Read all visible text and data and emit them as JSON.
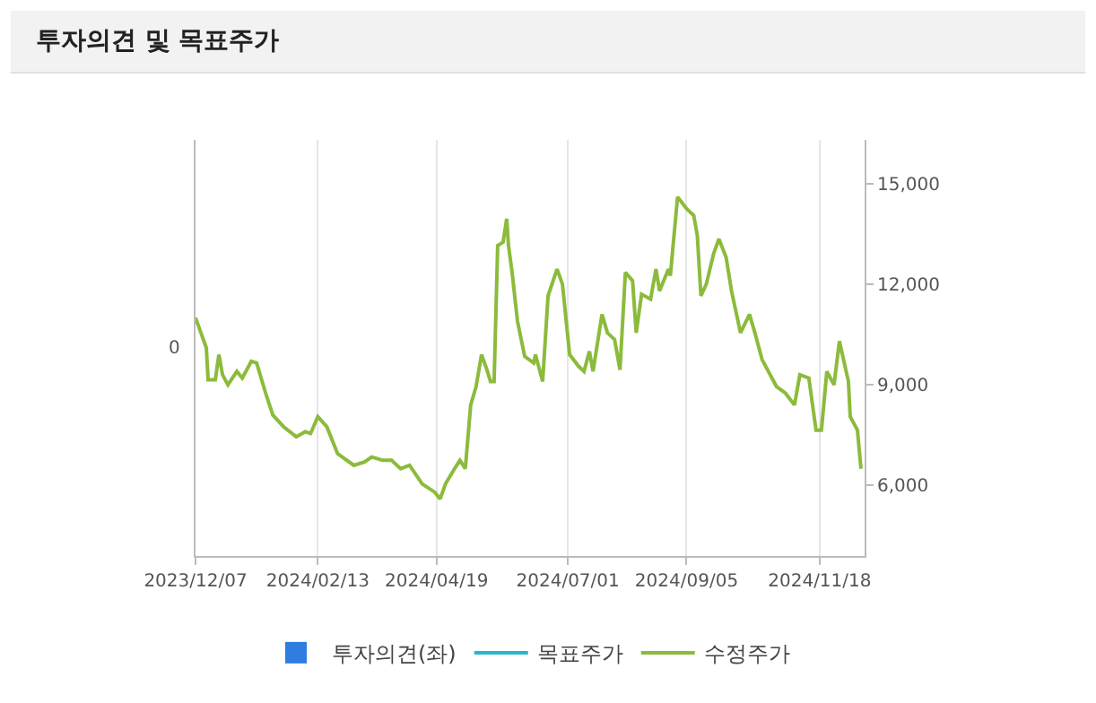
{
  "chart_data": {
    "type": "line",
    "title": "투자의견 및 목표주가",
    "xlim": [
      "2023-12-07",
      "2024-12-13"
    ],
    "xticks": [
      {
        "value": "2023-12-07",
        "label": "2023/12/07"
      },
      {
        "value": "2024-02-13",
        "label": "2024/02/13"
      },
      {
        "value": "2024-04-19",
        "label": "2024/04/19"
      },
      {
        "value": "2024-07-01",
        "label": "2024/07/01"
      },
      {
        "value": "2024-09-05",
        "label": "2024/09/05"
      },
      {
        "value": "2024-11-18",
        "label": "2024/11/18"
      }
    ],
    "annotations": [
      "0"
    ],
    "y2lim": [
      3900,
      16300
    ],
    "y2ticks": [
      {
        "value": 6000,
        "label": "6,000"
      },
      {
        "value": 9000,
        "label": "9,000"
      },
      {
        "value": 12000,
        "label": "12,000"
      },
      {
        "value": 15000,
        "label": "15,000"
      }
    ],
    "grid": "x",
    "legend": "bottom",
    "series": [
      {
        "type": "bar",
        "name": "투자의견(좌)",
        "color": "#2f7de1",
        "axis": "y"
      },
      {
        "type": "line",
        "name": "목표주가",
        "color": "#26b7cc",
        "axis": "y2"
      },
      {
        "name": "수정주가",
        "color": "#8cbb3c",
        "axis": "y2",
        "x": [
          "2023-12-07",
          "2023-12-10",
          "2023-12-13",
          "2023-12-14",
          "2023-12-18",
          "2023-12-20",
          "2023-12-22",
          "2023-12-25",
          "2023-12-30",
          "2024-01-02",
          "2024-01-07",
          "2024-01-10",
          "2024-01-15",
          "2024-01-19",
          "2024-01-25",
          "2024-02-01",
          "2024-02-06",
          "2024-02-09",
          "2024-02-13",
          "2024-02-18",
          "2024-02-24",
          "2024-03-04",
          "2024-03-10",
          "2024-03-14",
          "2024-03-20",
          "2024-03-25",
          "2024-03-30",
          "2024-04-04",
          "2024-04-11",
          "2024-04-18",
          "2024-04-21",
          "2024-04-24",
          "2024-04-29",
          "2024-05-02",
          "2024-05-05",
          "2024-05-08",
          "2024-05-11",
          "2024-05-14",
          "2024-05-17",
          "2024-05-19",
          "2024-05-21",
          "2024-05-23",
          "2024-05-26",
          "2024-05-28",
          "2024-05-29",
          "2024-05-31",
          "2024-06-03",
          "2024-06-07",
          "2024-06-12",
          "2024-06-13",
          "2024-06-17",
          "2024-06-20",
          "2024-06-25",
          "2024-06-28",
          "2024-07-02",
          "2024-07-07",
          "2024-07-10",
          "2024-07-13",
          "2024-07-15",
          "2024-07-20",
          "2024-07-23",
          "2024-07-27",
          "2024-07-30",
          "2024-08-02",
          "2024-08-06",
          "2024-08-08",
          "2024-08-11",
          "2024-08-16",
          "2024-08-19",
          "2024-08-21",
          "2024-08-26",
          "2024-08-27",
          "2024-08-31",
          "2024-09-05",
          "2024-09-09",
          "2024-09-11",
          "2024-09-13",
          "2024-09-16",
          "2024-09-20",
          "2024-09-23",
          "2024-09-27",
          "2024-09-30",
          "2024-10-05",
          "2024-10-10",
          "2024-10-13",
          "2024-10-17",
          "2024-10-25",
          "2024-10-30",
          "2024-11-04",
          "2024-11-07",
          "2024-11-12",
          "2024-11-16",
          "2024-11-19",
          "2024-11-22",
          "2024-11-26",
          "2024-11-29",
          "2024-12-04",
          "2024-12-05",
          "2024-12-09",
          "2024-12-11"
        ],
        "values": [
          11000,
          10550,
          10100,
          9150,
          9150,
          9900,
          9300,
          9000,
          9400,
          9200,
          9700,
          9650,
          8750,
          8100,
          7750,
          7450,
          7600,
          7550,
          8050,
          7750,
          6950,
          6600,
          6700,
          6850,
          6750,
          6750,
          6500,
          6600,
          6050,
          5800,
          5600,
          6050,
          6500,
          6750,
          6500,
          8400,
          8950,
          9900,
          9450,
          9100,
          9100,
          13150,
          13250,
          13950,
          13150,
          12350,
          10900,
          9850,
          9650,
          9900,
          9100,
          11650,
          12450,
          12000,
          9900,
          9550,
          9400,
          10000,
          9400,
          11100,
          10550,
          10350,
          9450,
          12350,
          12100,
          10550,
          11700,
          11550,
          12450,
          11800,
          12450,
          12250,
          14600,
          14250,
          14050,
          13450,
          11650,
          12000,
          12900,
          13350,
          12800,
          11800,
          10550,
          11100,
          10550,
          9750,
          8950,
          8750,
          8400,
          9300,
          9200,
          7650,
          7650,
          9400,
          9000,
          10300,
          9100,
          8050,
          7650,
          6500
        ]
      }
    ]
  }
}
